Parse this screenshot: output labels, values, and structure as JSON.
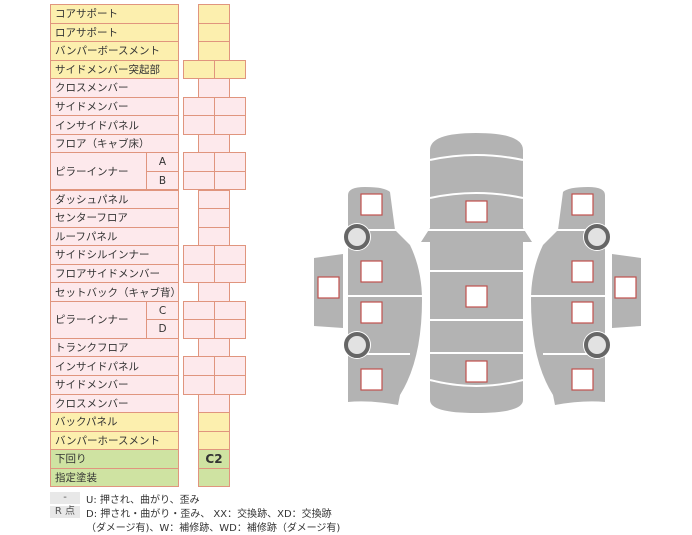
{
  "rows": [
    {
      "label": "コアサポート",
      "color": "y",
      "cols": 1
    },
    {
      "label": "ロアサポート",
      "color": "y",
      "cols": 1
    },
    {
      "label": "バンパーボースメント",
      "color": "y",
      "cols": 1
    },
    {
      "label": "サイドメンバー突起部",
      "color": "y",
      "cols": 2
    },
    {
      "label": "クロスメンバー",
      "color": "p",
      "cols": 1
    },
    {
      "label": "サイドメンバー",
      "color": "p",
      "cols": 2
    },
    {
      "label": "インサイドパネル",
      "color": "p",
      "cols": 2
    },
    {
      "label": "フロア（キャブ床）",
      "color": "p",
      "cols": 1
    },
    {
      "label": "ピラーインナー",
      "sub": "A",
      "color": "p",
      "cols": 2
    },
    {
      "label": "",
      "sub": "B",
      "color": "p",
      "cols": 2
    },
    {
      "label": "ダッシュパネル",
      "color": "p",
      "cols": 1
    },
    {
      "label": "センターフロア",
      "color": "p",
      "cols": 1
    },
    {
      "label": "ルーフパネル",
      "color": "p",
      "cols": 1
    },
    {
      "label": "サイドシルインナー",
      "color": "p",
      "cols": 2
    },
    {
      "label": "フロアサイドメンバー",
      "color": "p",
      "cols": 2
    },
    {
      "label": "セットバック（キャブ背）",
      "color": "p",
      "cols": 1
    },
    {
      "label": "ピラーインナー",
      "sub": "C",
      "color": "p",
      "cols": 2
    },
    {
      "label": "",
      "sub": "D",
      "color": "p",
      "cols": 2
    },
    {
      "label": "トランクフロア",
      "color": "p",
      "cols": 1
    },
    {
      "label": "インサイドパネル",
      "color": "p",
      "cols": 2
    },
    {
      "label": "サイドメンバー",
      "color": "p",
      "cols": 2
    },
    {
      "label": "クロスメンバー",
      "color": "p",
      "cols": 1
    },
    {
      "label": "バックパネル",
      "color": "y",
      "cols": 1
    },
    {
      "label": "バンパーホースメント",
      "color": "y",
      "cols": 1
    },
    {
      "label": "下回り",
      "color": "g",
      "cols": 1,
      "value": "C2"
    },
    {
      "label": "指定塗装",
      "color": "g",
      "cols": 1
    }
  ],
  "legend": [
    {
      "key": "-",
      "text": "U: 押され、曲がり、歪み"
    },
    {
      "key": "R 点",
      "text": "D: 押され・曲がり・歪み、 XX：交換跡、XD：交換跡"
    },
    {
      "key": "",
      "text": "（ダメージ有)、W：補修跡、WD：補修跡（ダメージ有)"
    }
  ],
  "colors": {
    "yellow": "#fcefae",
    "pink": "#fde9ec",
    "green": "#cfe3a2",
    "border": "#e0957e",
    "car": "#b3b3b3"
  }
}
